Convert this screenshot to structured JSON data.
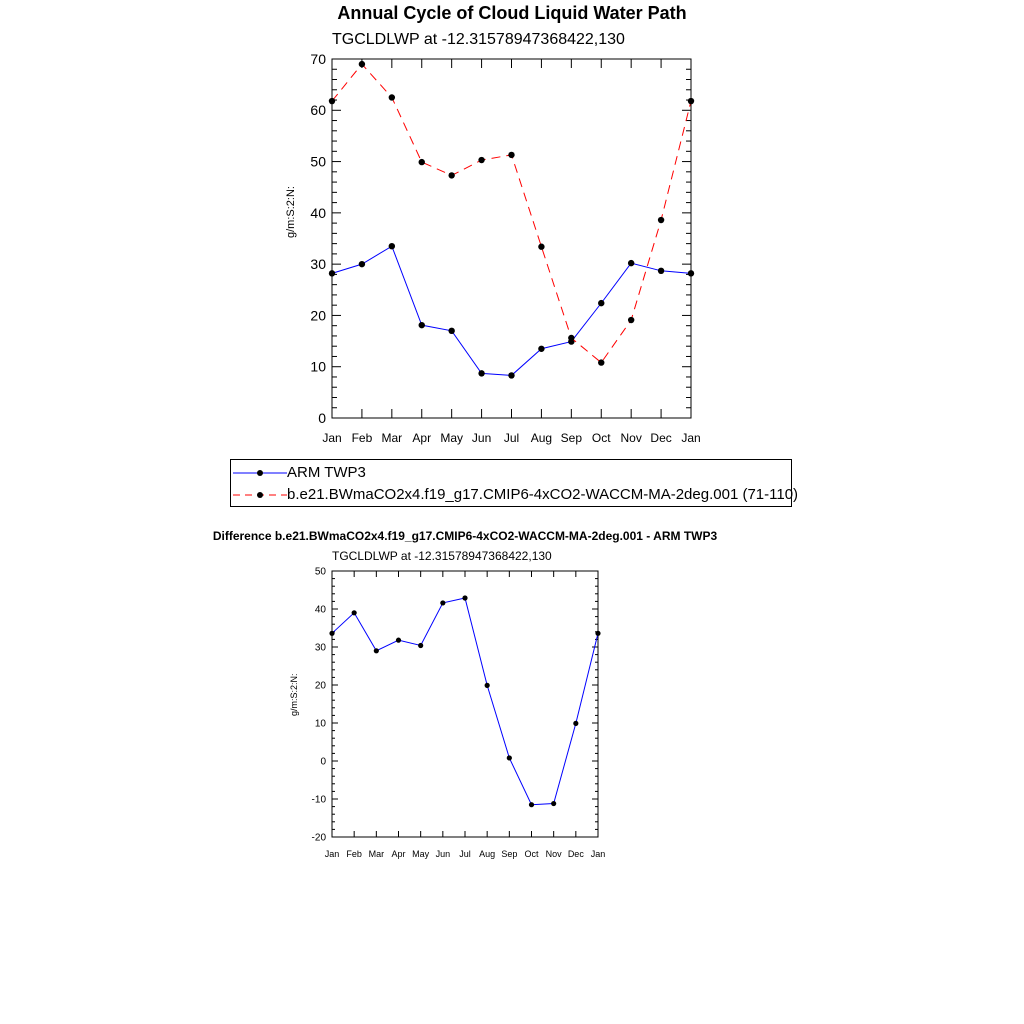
{
  "title": "Annual Cycle of Cloud Liquid Water Path",
  "chart_data": [
    {
      "type": "line",
      "subtitle": "TGCLDLWP at -12.31578947368422,130",
      "ylabel": "g/m:S:2:N:",
      "xlabel": "",
      "categories": [
        "Jan",
        "Feb",
        "Mar",
        "Apr",
        "May",
        "Jun",
        "Jul",
        "Aug",
        "Sep",
        "Oct",
        "Nov",
        "Dec",
        "Jan"
      ],
      "ylim": [
        0,
        70
      ],
      "yticks": [
        0,
        10,
        20,
        30,
        40,
        50,
        60,
        70
      ],
      "series": [
        {
          "name": "ARM TWP3",
          "color": "#0000ff",
          "dash": "solid",
          "values": [
            28.2,
            30.0,
            33.5,
            18.1,
            17.0,
            8.7,
            8.3,
            13.5,
            14.9,
            22.4,
            30.2,
            28.7,
            28.2
          ]
        },
        {
          "name": "b.e21.BWmaCO2x4.f19_g17.CMIP6-4xCO2-WACCM-MA-2deg.001 (71-110)",
          "color": "#ff0000",
          "dash": "dashed",
          "values": [
            61.8,
            69.0,
            62.5,
            49.9,
            47.3,
            50.3,
            51.3,
            33.4,
            15.6,
            10.8,
            19.1,
            38.6,
            61.8
          ]
        }
      ]
    },
    {
      "type": "line",
      "title": "Difference b.e21.BWmaCO2x4.f19_g17.CMIP6-4xCO2-WACCM-MA-2deg.001 - ARM TWP3",
      "subtitle": "TGCLDLWP at -12.31578947368422,130",
      "ylabel": "g/m:S:2:N:",
      "xlabel": "",
      "categories": [
        "Jan",
        "Feb",
        "Mar",
        "Apr",
        "May",
        "Jun",
        "Jul",
        "Aug",
        "Sep",
        "Oct",
        "Nov",
        "Dec",
        "Jan"
      ],
      "ylim": [
        -20,
        50
      ],
      "yticks": [
        -20,
        -10,
        0,
        10,
        20,
        30,
        40,
        50
      ],
      "series": [
        {
          "name": "Difference",
          "color": "#0000ff",
          "dash": "solid",
          "values": [
            33.6,
            39.0,
            29.0,
            31.8,
            30.4,
            41.6,
            42.9,
            19.9,
            0.8,
            -11.5,
            -11.2,
            9.9,
            33.6
          ]
        }
      ]
    }
  ]
}
